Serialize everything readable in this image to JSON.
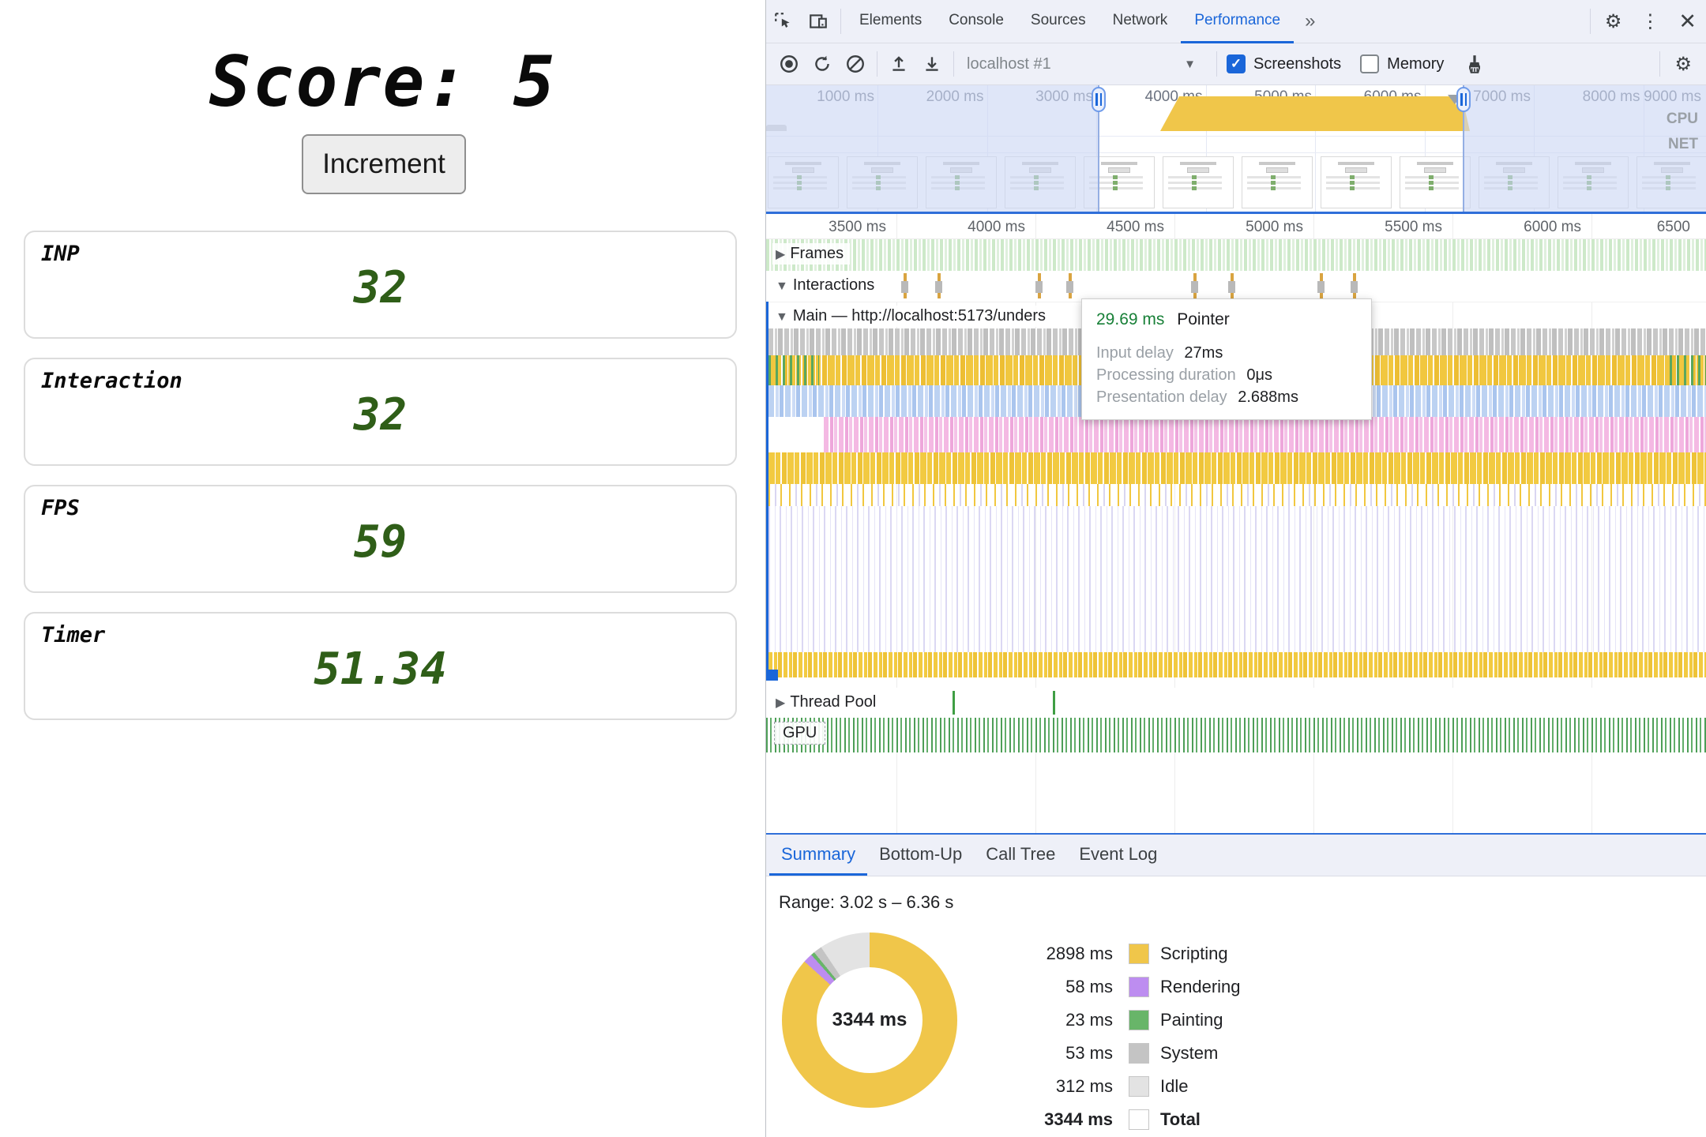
{
  "app": {
    "title": "Score: 5",
    "increment_label": "Increment",
    "metrics": [
      {
        "label": "INP",
        "value": "32"
      },
      {
        "label": "Interaction",
        "value": "32"
      },
      {
        "label": "FPS",
        "value": "59"
      },
      {
        "label": "Timer",
        "value": "51.34"
      }
    ],
    "value_color": "#2f5e18"
  },
  "devtools": {
    "tabs": [
      {
        "label": "Elements"
      },
      {
        "label": "Console"
      },
      {
        "label": "Sources"
      },
      {
        "label": "Network"
      },
      {
        "label": "Performance",
        "active": true
      }
    ],
    "more_tabs": "»",
    "toolbar": {
      "profile": "localhost #1",
      "screenshots_label": "Screenshots",
      "memory_label": "Memory"
    },
    "overview": {
      "ticks": [
        "1000 ms",
        "2000 ms",
        "3000 ms",
        "4000 ms",
        "5000 ms",
        "6000 ms",
        "7000 ms",
        "8000 ms",
        "9000 ms"
      ],
      "cpu_label": "CPU",
      "net_label": "NET"
    },
    "flame": {
      "ticks": [
        "3500 ms",
        "4000 ms",
        "4500 ms",
        "5000 ms",
        "5500 ms",
        "6000 ms",
        "6500"
      ],
      "frames_label": "Frames",
      "interactions_label": "Interactions",
      "main_label": "Main — http://localhost:5173/unders",
      "thread_pool_label": "Thread Pool",
      "gpu_label": "GPU",
      "interaction_markers_x": [
        174,
        217,
        344,
        383,
        541,
        588,
        701,
        743
      ],
      "thread_marks_x": [
        236,
        363
      ]
    },
    "tooltip": {
      "duration": "29.69 ms",
      "type": "Pointer",
      "rows": [
        {
          "label": "Input delay",
          "value": "27ms"
        },
        {
          "label": "Processing duration",
          "value": "0μs"
        },
        {
          "label": "Presentation delay",
          "value": "2.688ms"
        }
      ]
    },
    "summary": {
      "tabs": [
        {
          "label": "Summary",
          "active": true
        },
        {
          "label": "Bottom-Up"
        },
        {
          "label": "Call Tree"
        },
        {
          "label": "Event Log"
        }
      ],
      "range": "Range: 3.02 s – 6.36 s",
      "donut_center": "3344 ms",
      "legend": [
        {
          "value": "2898 ms",
          "label": "Scripting",
          "color": "#f0c64a",
          "ms": 2898
        },
        {
          "value": "58 ms",
          "label": "Rendering",
          "color": "#bd8df0",
          "ms": 58
        },
        {
          "value": "23 ms",
          "label": "Painting",
          "color": "#68b569",
          "ms": 23
        },
        {
          "value": "53 ms",
          "label": "System",
          "color": "#c4c4c4",
          "ms": 53
        },
        {
          "value": "312 ms",
          "label": "Idle",
          "color": "#e3e3e3",
          "ms": 312
        }
      ],
      "total": {
        "value": "3344 ms",
        "label": "Total",
        "color": "#ffffff",
        "ms": 3344
      }
    }
  }
}
